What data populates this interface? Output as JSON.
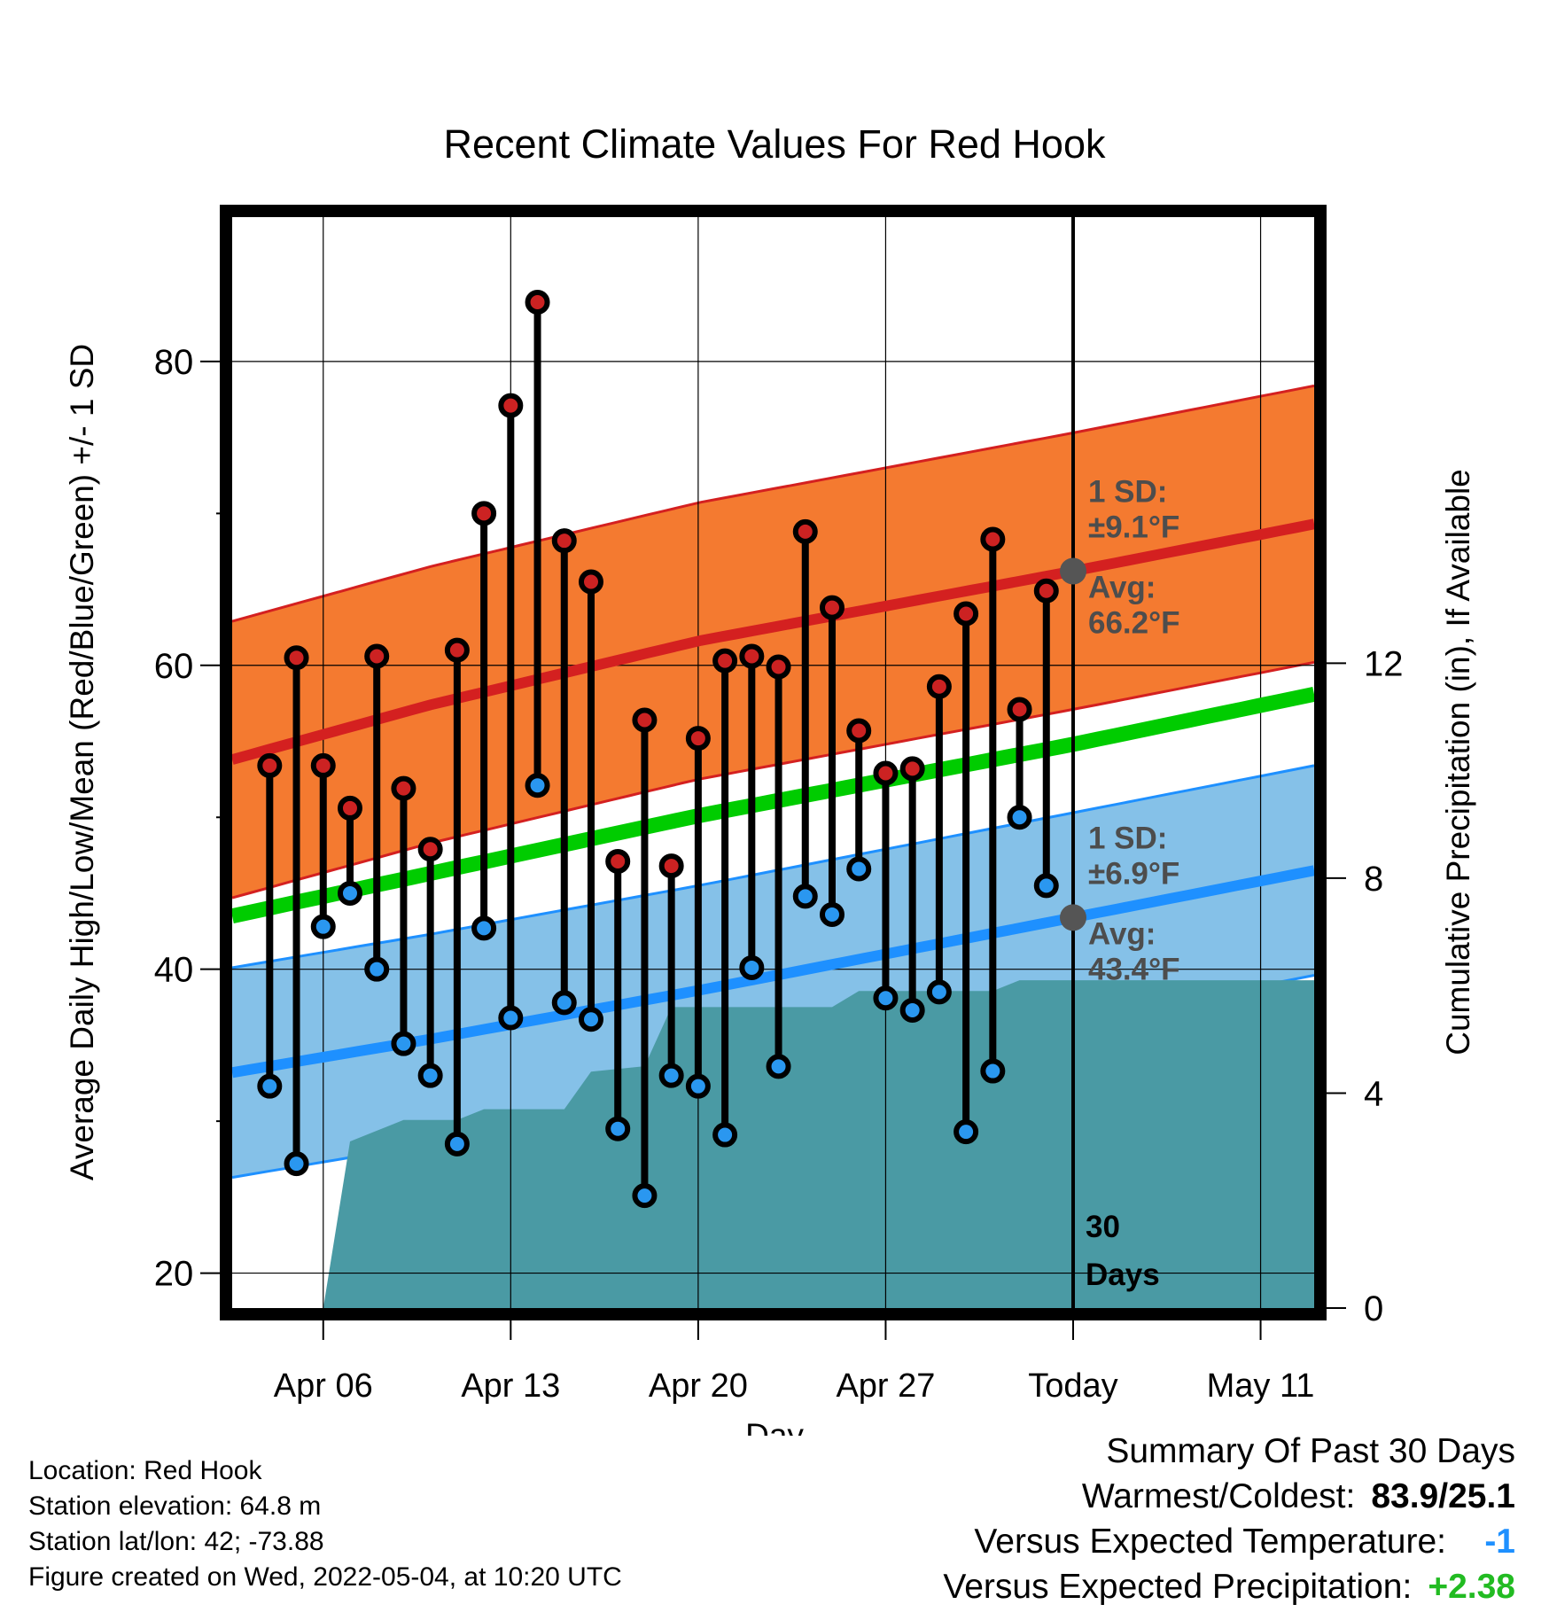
{
  "chart_data": {
    "type": "line",
    "title": "Recent Climate Values For Red Hook",
    "xlabel": "Day",
    "ylabel": "Average Daily High/Low/Mean (Red/Blue/Green) +/- 1 SD",
    "y2label": "Cumulative Precipitation (in), If Available",
    "x_ticks": [
      {
        "day": 6,
        "label": "Apr 06"
      },
      {
        "day": 13,
        "label": "Apr 13"
      },
      {
        "day": 20,
        "label": "Apr 20"
      },
      {
        "day": 27,
        "label": "Apr 27"
      },
      {
        "day": 34,
        "label": "Today"
      },
      {
        "day": 41,
        "label": "May 11"
      }
    ],
    "xlim_days": [
      2.6,
      43.0
    ],
    "y_ticks": [
      "20",
      "40",
      "60",
      "80"
    ],
    "ylim": [
      17.7,
      89.5
    ],
    "y2_ticks": [
      "0",
      "4",
      "8",
      "12"
    ],
    "y2lim": [
      0,
      20.3
    ],
    "grid": true,
    "today_marker": {
      "day": 34,
      "label_line1": "30",
      "label_line2": "Days"
    },
    "normal_high": {
      "color": "#d42020",
      "band_color": "#f47a30",
      "mean": [
        {
          "day": 2.6,
          "value": 53.8
        },
        {
          "day": 10,
          "value": 57.4
        },
        {
          "day": 20,
          "value": 61.6
        },
        {
          "day": 34,
          "value": 66.2
        },
        {
          "day": 43,
          "value": 69.3
        }
      ],
      "sd": 9.1,
      "sd_label": "1 SD:",
      "sd_value": "±9.1°F",
      "avg_label": "Avg:",
      "avg_value": "66.2°F"
    },
    "normal_low": {
      "color": "#1e90ff",
      "band_color": "#85c1e8",
      "mean": [
        {
          "day": 2.6,
          "value": 33.2
        },
        {
          "day": 10,
          "value": 35.4
        },
        {
          "day": 20,
          "value": 38.6
        },
        {
          "day": 34,
          "value": 43.4
        },
        {
          "day": 43,
          "value": 46.5
        }
      ],
      "sd": 6.9,
      "sd_label": "1 SD:",
      "sd_value": "±6.9°F",
      "avg_label": "Avg:",
      "avg_value": "43.4°F"
    },
    "normal_mean": {
      "color": "#00cc00",
      "values": [
        {
          "day": 2.6,
          "value": 43.5
        },
        {
          "day": 20,
          "value": 50.1
        },
        {
          "day": 34,
          "value": 54.8
        },
        {
          "day": 43,
          "value": 58.1
        }
      ]
    },
    "precipitation": {
      "color": "#4a9aa4",
      "cumulative": [
        {
          "day": 6,
          "value": 0
        },
        {
          "day": 7,
          "value": 3.1
        },
        {
          "day": 8,
          "value": 3.3
        },
        {
          "day": 9,
          "value": 3.5
        },
        {
          "day": 11,
          "value": 3.5
        },
        {
          "day": 12,
          "value": 3.7
        },
        {
          "day": 15,
          "value": 3.7
        },
        {
          "day": 16,
          "value": 4.4
        },
        {
          "day": 18,
          "value": 4.5
        },
        {
          "day": 19,
          "value": 5.6
        },
        {
          "day": 25,
          "value": 5.6
        },
        {
          "day": 26,
          "value": 5.9
        },
        {
          "day": 31,
          "value": 5.9
        },
        {
          "day": 32,
          "value": 6.1
        },
        {
          "day": 43,
          "value": 6.1
        }
      ]
    },
    "daily": [
      {
        "day": 4,
        "high": 53.4,
        "low": 32.3
      },
      {
        "day": 5,
        "high": 60.5,
        "low": 27.2
      },
      {
        "day": 6,
        "high": 53.4,
        "low": 42.8
      },
      {
        "day": 7,
        "high": 50.6,
        "low": 45.0
      },
      {
        "day": 8,
        "high": 60.6,
        "low": 40.0
      },
      {
        "day": 9,
        "high": 51.9,
        "low": 35.1
      },
      {
        "day": 10,
        "high": 47.9,
        "low": 33.0
      },
      {
        "day": 11,
        "high": 61.0,
        "low": 28.5
      },
      {
        "day": 12,
        "high": 70.0,
        "low": 42.7
      },
      {
        "day": 13,
        "high": 77.1,
        "low": 36.8
      },
      {
        "day": 14,
        "high": 83.9,
        "low": 52.1
      },
      {
        "day": 15,
        "high": 68.2,
        "low": 37.8
      },
      {
        "day": 16,
        "high": 65.5,
        "low": 36.7
      },
      {
        "day": 17,
        "high": 47.1,
        "low": 29.5
      },
      {
        "day": 18,
        "high": 56.4,
        "low": 25.1
      },
      {
        "day": 19,
        "high": 46.8,
        "low": 33.0
      },
      {
        "day": 20,
        "high": 55.2,
        "low": 32.3
      },
      {
        "day": 21,
        "high": 60.3,
        "low": 29.1
      },
      {
        "day": 22,
        "high": 60.6,
        "low": 40.1
      },
      {
        "day": 23,
        "high": 59.9,
        "low": 33.6
      },
      {
        "day": 24,
        "high": 68.8,
        "low": 44.8
      },
      {
        "day": 25,
        "high": 63.8,
        "low": 43.6
      },
      {
        "day": 26,
        "high": 55.7,
        "low": 46.6
      },
      {
        "day": 27,
        "high": 52.9,
        "low": 38.1
      },
      {
        "day": 28,
        "high": 53.2,
        "low": 37.3
      },
      {
        "day": 29,
        "high": 58.6,
        "low": 38.5
      },
      {
        "day": 30,
        "high": 63.4,
        "low": 29.3
      },
      {
        "day": 31,
        "high": 68.3,
        "low": 33.3
      },
      {
        "day": 32,
        "high": 57.1,
        "low": 50.0
      },
      {
        "day": 33,
        "high": 64.9,
        "low": 45.5
      }
    ]
  },
  "station_info": {
    "location": "Location: Red Hook",
    "elevation": "Station elevation: 64.8 m",
    "latlon": "Station lat/lon: 42; -73.88",
    "created": "Figure created on Wed, 2022-05-04, at 10:20 UTC"
  },
  "summary": {
    "title": "Summary Of Past 30 Days",
    "warmest_label": "Warmest/Coldest:",
    "warmest_value": "83.9/25.1",
    "temp_label": "Versus Expected Temperature:",
    "temp_value": "-1",
    "temp_color": "#1e90ff",
    "precip_label": "Versus Expected Precipitation:",
    "precip_value": "+2.38",
    "precip_color": "#22bb22"
  }
}
